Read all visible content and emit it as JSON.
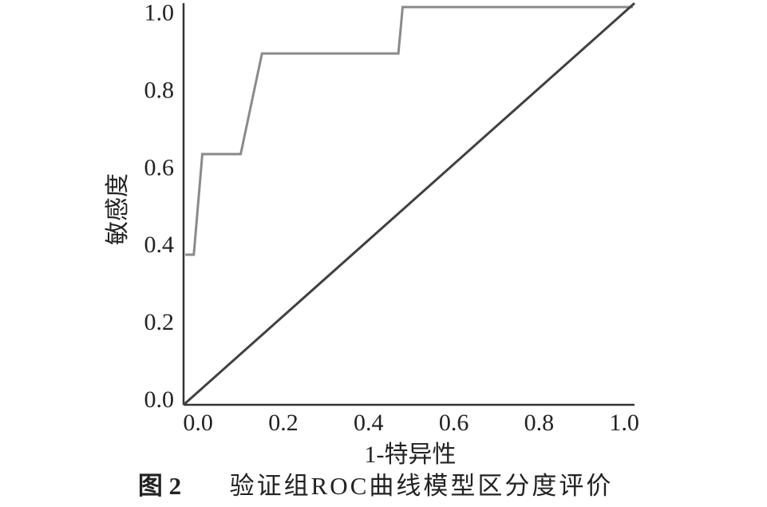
{
  "chart_data": {
    "type": "line",
    "x_label": "1-特异性",
    "y_label": "敏感度",
    "figure_label": "图 2",
    "caption": "验证组ROC曲线模型区分度评价",
    "xlim": [
      -0.034,
      1.024
    ],
    "ylim": [
      -0.008,
      1.03
    ],
    "xticks": [
      {
        "value": 0,
        "label": "0.0"
      },
      0.2,
      0.4,
      0.6,
      0.8,
      {
        "value": 1,
        "label": "1.0"
      }
    ],
    "yticks": [
      {
        "value": 0,
        "label": "0.0"
      },
      0.2,
      0.4,
      0.6,
      0.8,
      {
        "value": 1,
        "label": "1.0"
      }
    ],
    "grid": false,
    "series": [
      {
        "color": "#8a8a8a",
        "x": [
          -0.03,
          -0.01,
          0.01,
          0.1,
          0.15,
          0.47,
          0.48,
          1.02
        ],
        "values": [
          0.38,
          0.38,
          0.64,
          0.64,
          0.9,
          0.9,
          1.02,
          1.02
        ]
      },
      {
        "color": "#404040",
        "x": [
          -0.034,
          1.024
        ],
        "values": [
          -0.008,
          1.03
        ]
      }
    ]
  }
}
